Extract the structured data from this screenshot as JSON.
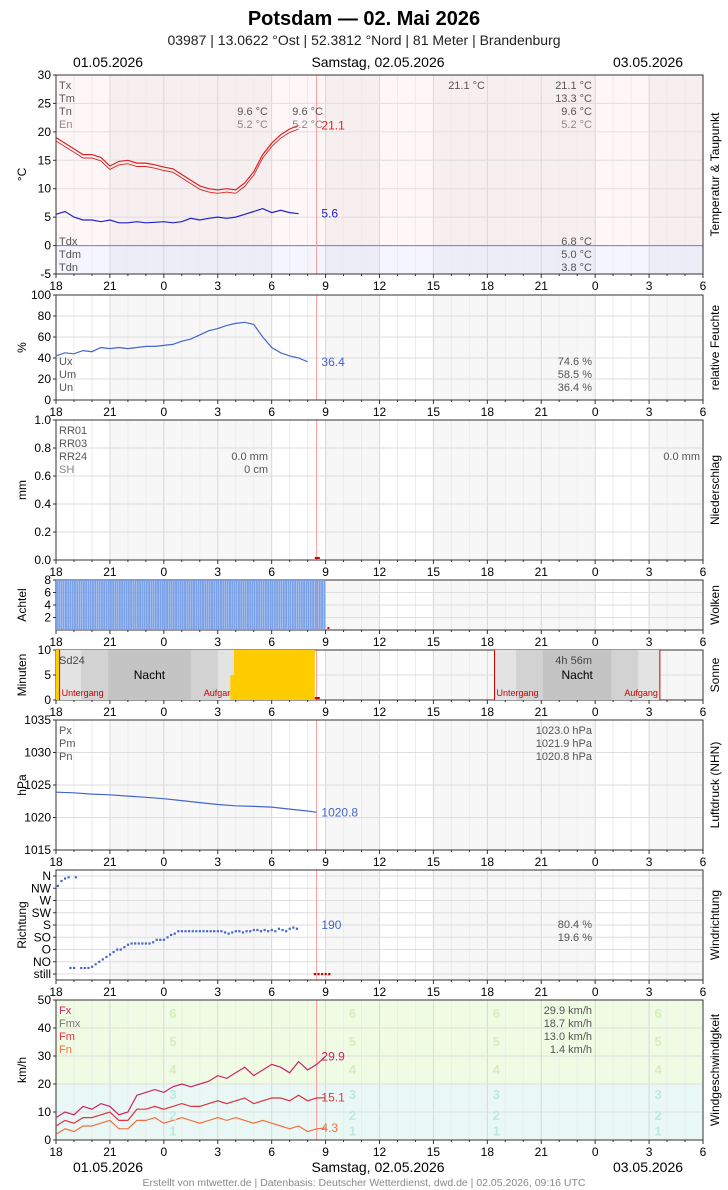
{
  "header": {
    "title": "Potsdam  —  02. Mai 2026",
    "subtitle": "03987  |  13.0622 °Ost  |  52.3812 °Nord  |  81 Meter  |  Brandenburg",
    "date_left": "01.05.2026",
    "date_center": "Samstag, 02.05.2026",
    "date_right": "03.05.2026"
  },
  "footer": "Erstellt von mtwetter.de | Datenbasis: Deutscher Wetterdienst, dwd.de | 02.05.2026, 09:16 UTC",
  "colors": {
    "temp": "#dd2222",
    "dew": "#2222cc",
    "blue": "#4466cc",
    "clouds": "#7aa0e6",
    "sun": "#ffcc00",
    "gust": "#cc2266",
    "wind_mean": "#dd3344",
    "wind_min": "#f07040"
  },
  "x_ticks": [
    "18",
    "21",
    "0",
    "3",
    "6",
    "9",
    "12",
    "15",
    "18",
    "21",
    "0",
    "3",
    "6"
  ],
  "chart_data": [
    {
      "id": "temperature",
      "type": "line",
      "side_label": "Temperatur & Taupunkt",
      "ylabel": "°C",
      "ylim": [
        -5,
        30
      ],
      "yticks": [
        "30",
        "25",
        "20",
        "15",
        "10",
        "5",
        "0",
        "-5"
      ],
      "x_hours": [
        0,
        0.5,
        1,
        1.5,
        2,
        2.5,
        3,
        3.5,
        4,
        4.5,
        5,
        5.5,
        6,
        6.5,
        7,
        7.5,
        8,
        8.5,
        9,
        9.5,
        10,
        10.5,
        11,
        11.5,
        12,
        12.5,
        13,
        13.5,
        14,
        14.5
      ],
      "series": [
        {
          "name": "",
          "key": "temp",
          "values": [
            19,
            18,
            17,
            16,
            16,
            15.5,
            14,
            14.8,
            15,
            14.5,
            14.5,
            14.2,
            13.8,
            13.5,
            12.5,
            11.5,
            10.5,
            10,
            9.8,
            10,
            9.8,
            11,
            13,
            16,
            18,
            19.5,
            20.5,
            21.1,
            null,
            null
          ]
        },
        {
          "name": "",
          "key": "dew",
          "values": [
            5.5,
            6,
            5,
            4.5,
            4.5,
            4.2,
            4.5,
            4,
            4,
            4.2,
            4,
            4.1,
            4.2,
            4,
            4.2,
            4.8,
            4.5,
            4.8,
            5,
            4.8,
            5,
            5.5,
            6,
            6.5,
            5.8,
            6.2,
            5.8,
            5.6,
            null,
            null
          ]
        }
      ],
      "end_labels": [
        {
          "text": "21.1",
          "key": "temp"
        },
        {
          "text": "5.6",
          "key": "dew"
        }
      ],
      "legend_top": [
        "Tx",
        "Tm",
        "Tn",
        "En"
      ],
      "legend_bottom": [
        "Tdx",
        "Tdm",
        "Tdn"
      ],
      "mid_values": [
        "9.6 °C",
        "5.2 °C",
        "9.6 °C",
        "5.2 °C"
      ],
      "right_top": [
        "21.1 °C",
        "13.3 °C",
        "9.6 °C",
        "5.2 °C"
      ],
      "right_top_extra": "21.1 °C",
      "right_bottom": [
        "6.8 °C",
        "5.0 °C",
        "3.8 °C"
      ]
    },
    {
      "id": "humidity",
      "type": "line",
      "side_label": "relative Feuchte",
      "ylabel": "%",
      "ylim": [
        0,
        100
      ],
      "yticks": [
        "100",
        "80",
        "60",
        "40",
        "20",
        "0"
      ],
      "x_hours": [
        0,
        0.5,
        1,
        1.5,
        2,
        2.5,
        3,
        3.5,
        4,
        4.5,
        5,
        5.5,
        6,
        6.5,
        7,
        7.5,
        8,
        8.5,
        9,
        9.5,
        10,
        10.5,
        11,
        11.5,
        12,
        12.5,
        13,
        13.5,
        14,
        14.5
      ],
      "series": [
        {
          "name": "",
          "key": "blue",
          "values": [
            42,
            45,
            44,
            47,
            46,
            50,
            49,
            50,
            49,
            50,
            51,
            51,
            52,
            53,
            56,
            58,
            62,
            66,
            68,
            71,
            73,
            74,
            72,
            60,
            50,
            45,
            42,
            40,
            36.4,
            null
          ]
        }
      ],
      "end_labels": [
        {
          "text": "36.4",
          "key": "blue"
        }
      ],
      "legend_top": [
        "Ux",
        "Um",
        "Un"
      ],
      "right_bottom": [
        "74.6 %",
        "58.5 %",
        "36.4 %"
      ]
    },
    {
      "id": "precipitation",
      "type": "bar",
      "side_label": "Niederschlag",
      "ylabel": "mm",
      "ylim": [
        0,
        1
      ],
      "yticks": [
        "1.0",
        "0.8",
        "0.6",
        "0.4",
        "0.2",
        "0.0"
      ],
      "legend_top": [
        "RR01",
        "RR03",
        "RR24",
        "SH"
      ],
      "mid_values": [
        "0.0 mm",
        "0 cm"
      ],
      "right_value": "0.0 mm"
    },
    {
      "id": "clouds",
      "type": "bar",
      "side_label": "Wolken",
      "ylabel": "Achtel",
      "ylim": [
        0,
        8
      ],
      "yticks": [
        "8",
        "6",
        "4",
        "2"
      ],
      "x_range_hours": [
        0,
        15
      ],
      "value": 8
    },
    {
      "id": "sunshine",
      "type": "bar",
      "side_label": "Sonne",
      "ylabel": "Minuten",
      "ylim": [
        0,
        10
      ],
      "yticks": [
        "10",
        "5",
        "0"
      ],
      "legend_top": [
        "Sd24"
      ],
      "right_value": "4h 56m",
      "night_label": "Nacht",
      "sunset_label": "Untergang",
      "sunrise_label": "Aufgang",
      "sun_hours": [
        9.9,
        15.1
      ],
      "value": 10
    },
    {
      "id": "pressure",
      "type": "line",
      "side_label": "Luftdruck (NHN)",
      "ylabel": "hPa",
      "ylim": [
        1015,
        1035
      ],
      "yticks": [
        "1035",
        "1030",
        "1025",
        "1020",
        "1015"
      ],
      "x_hours": [
        0,
        1,
        2,
        3,
        4,
        5,
        6,
        7,
        8,
        9,
        10,
        11,
        12,
        13,
        14,
        14.5
      ],
      "series": [
        {
          "name": "",
          "key": "blue",
          "values": [
            1023.9,
            1023.8,
            1023.6,
            1023.5,
            1023.3,
            1023.1,
            1022.9,
            1022.6,
            1022.3,
            1022,
            1021.8,
            1021.7,
            1021.6,
            1021.3,
            1021,
            1020.8
          ]
        }
      ],
      "end_labels": [
        {
          "text": "1020.8",
          "key": "blue"
        }
      ],
      "legend_top": [
        "Px",
        "Pm",
        "Pn"
      ],
      "right_top": [
        "1023.0 hPa",
        "1021.9 hPa",
        "1020.8 hPa"
      ]
    },
    {
      "id": "winddir",
      "type": "scatter",
      "side_label": "Windrichtung",
      "ylabel": "Richtung",
      "ylim": [
        0,
        8
      ],
      "yticks": [
        "N",
        "NW",
        "W",
        "SW",
        "S",
        "SO",
        "O",
        "NO",
        "still"
      ],
      "points": [
        [
          0.1,
          7.2
        ],
        [
          0.3,
          7.6
        ],
        [
          0.5,
          7.8
        ],
        [
          0.7,
          7.9
        ],
        [
          1.1,
          7.9
        ],
        [
          0.8,
          0.5
        ],
        [
          1.0,
          0.5
        ],
        [
          1.4,
          0.5
        ],
        [
          1.6,
          0.5
        ],
        [
          1.8,
          0.5
        ],
        [
          2,
          0.6
        ],
        [
          2.2,
          0.8
        ],
        [
          2.4,
          1
        ],
        [
          2.6,
          1.2
        ],
        [
          2.8,
          1.4
        ],
        [
          3,
          1.6
        ],
        [
          3.2,
          1.8
        ],
        [
          3.4,
          2
        ],
        [
          3.6,
          2
        ],
        [
          3.8,
          2.2
        ],
        [
          4,
          2.4
        ],
        [
          4.2,
          2.5
        ],
        [
          4.4,
          2.5
        ],
        [
          4.6,
          2.5
        ],
        [
          4.8,
          2.5
        ],
        [
          5,
          2.5
        ],
        [
          5.2,
          2.5
        ],
        [
          5.4,
          2.6
        ],
        [
          5.6,
          2.8
        ],
        [
          5.8,
          2.8
        ],
        [
          6,
          2.8
        ],
        [
          6.2,
          3
        ],
        [
          6.4,
          3.2
        ],
        [
          6.6,
          3.3
        ],
        [
          6.8,
          3.5
        ],
        [
          7,
          3.5
        ],
        [
          7.2,
          3.5
        ],
        [
          7.4,
          3.5
        ],
        [
          7.6,
          3.5
        ],
        [
          7.8,
          3.5
        ],
        [
          8,
          3.5
        ],
        [
          8.2,
          3.5
        ],
        [
          8.4,
          3.5
        ],
        [
          8.6,
          3.5
        ],
        [
          8.8,
          3.5
        ],
        [
          9,
          3.5
        ],
        [
          9.2,
          3.5
        ],
        [
          9.4,
          3.4
        ],
        [
          9.6,
          3.3
        ],
        [
          9.8,
          3.4
        ],
        [
          10,
          3.5
        ],
        [
          10.2,
          3.5
        ],
        [
          10.4,
          3.4
        ],
        [
          10.6,
          3.5
        ],
        [
          10.8,
          3.5
        ],
        [
          11,
          3.6
        ],
        [
          11.2,
          3.6
        ],
        [
          11.4,
          3.5
        ],
        [
          11.6,
          3.6
        ],
        [
          11.8,
          3.5
        ],
        [
          12,
          3.6
        ],
        [
          12.2,
          3.5
        ],
        [
          12.4,
          3.7
        ],
        [
          12.6,
          3.6
        ],
        [
          12.8,
          3.5
        ],
        [
          13,
          3.7
        ],
        [
          13.2,
          3.8
        ],
        [
          13.4,
          3.7
        ],
        [
          14.4,
          0
        ],
        [
          14.6,
          0
        ],
        [
          14.8,
          0
        ],
        [
          15,
          0
        ],
        [
          15.2,
          0
        ]
      ],
      "end_labels": [
        {
          "text": "190",
          "key": "blue"
        }
      ],
      "right_values": [
        "80.4 %",
        "19.6 %"
      ]
    },
    {
      "id": "wind",
      "type": "line",
      "side_label": "Windgeschwindigkeit",
      "ylabel": "km/h",
      "ylim": [
        0,
        50
      ],
      "yticks": [
        "50",
        "40",
        "30",
        "20",
        "10",
        "0"
      ],
      "x_hours": [
        0,
        0.5,
        1,
        1.5,
        2,
        2.5,
        3,
        3.5,
        4,
        4.5,
        5,
        5.5,
        6,
        6.5,
        7,
        7.5,
        8,
        8.5,
        9,
        9.5,
        10,
        10.5,
        11,
        11.5,
        12,
        12.5,
        13,
        13.5,
        14,
        14.5,
        15
      ],
      "series": [
        {
          "name": "",
          "key": "gust",
          "values": [
            8,
            10,
            9,
            12,
            11,
            13,
            12,
            9,
            10,
            16,
            17,
            18,
            17,
            19,
            20,
            19,
            20,
            21,
            23,
            22,
            24,
            26,
            23,
            25,
            27,
            26,
            24,
            28,
            25,
            27,
            29.9
          ]
        },
        {
          "name": "",
          "key": "wind_mean",
          "values": [
            5,
            7,
            6,
            8,
            8,
            9,
            10,
            7,
            7,
            11,
            11,
            12,
            11,
            12,
            13,
            12,
            12,
            13,
            14,
            13,
            14,
            15,
            13,
            14,
            15,
            15,
            14,
            16,
            14,
            15,
            15.1
          ]
        },
        {
          "name": "",
          "key": "wind_min",
          "values": [
            2,
            4,
            3,
            5,
            5,
            6,
            7,
            4,
            4,
            7,
            7,
            8,
            6,
            7,
            8,
            7,
            6,
            7,
            8,
            7,
            8,
            7,
            6,
            7,
            6,
            5,
            4,
            5,
            3,
            4,
            4.3
          ]
        }
      ],
      "end_labels": [
        {
          "text": "29.9",
          "key": "gust"
        },
        {
          "text": "15.1",
          "key": "wind_mean"
        },
        {
          "text": "4.3",
          "key": "wind_min"
        }
      ],
      "legend_top": [
        "Fx",
        "Fmx",
        "Fm",
        "Fn"
      ],
      "right_top": [
        "29.9 km/h",
        "18.7 km/h",
        "13.0 km/h",
        "1.4 km/h"
      ],
      "beaufort_labels": [
        "1",
        "2",
        "3",
        "4",
        "5",
        "6"
      ]
    }
  ]
}
